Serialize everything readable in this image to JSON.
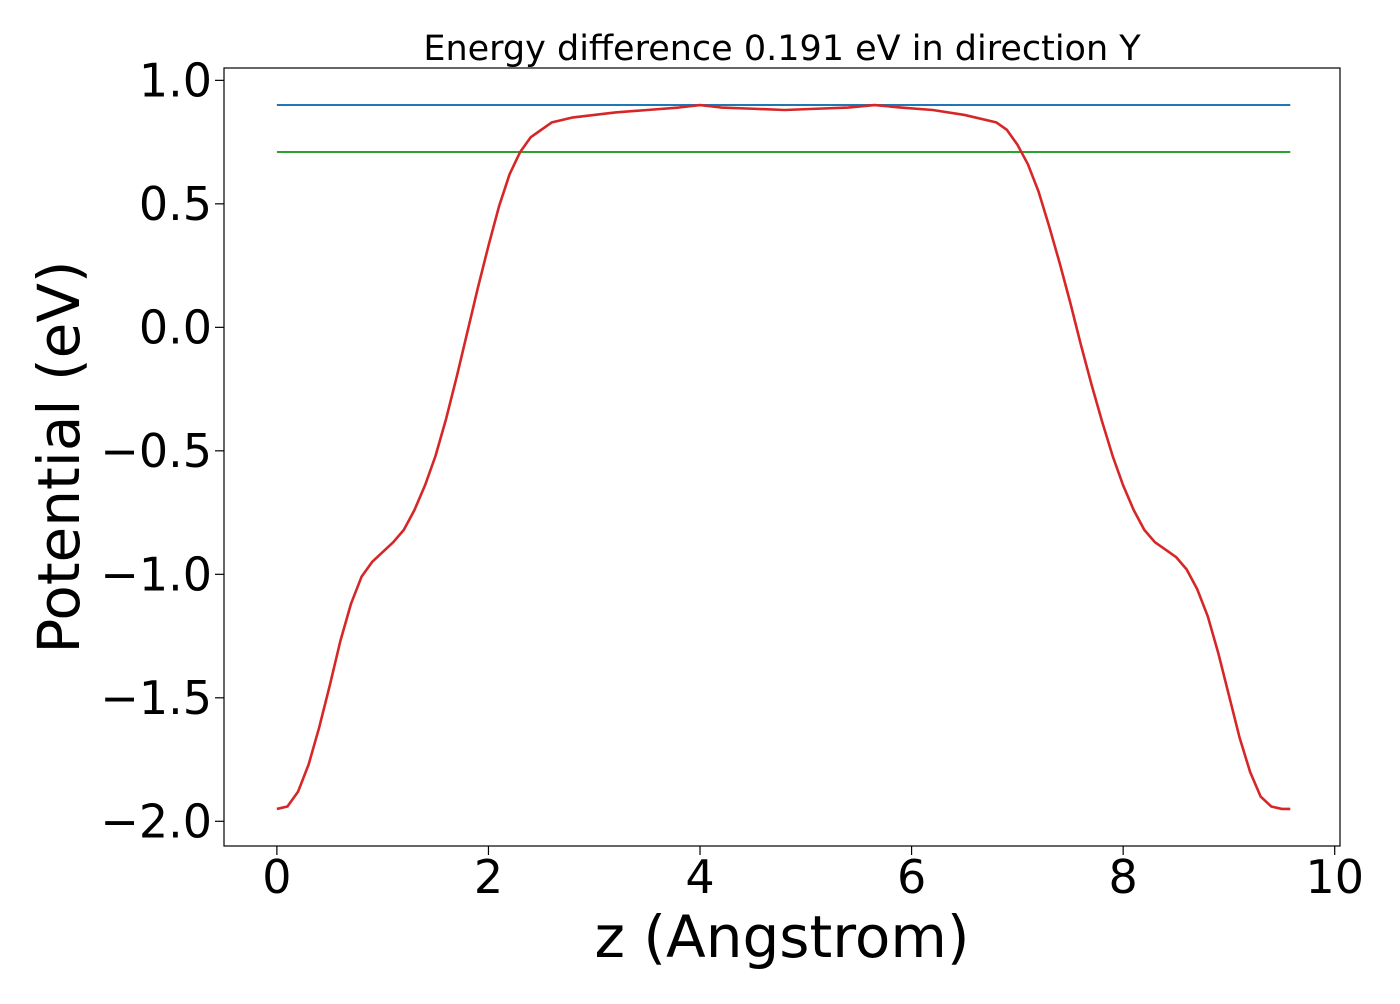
{
  "chart_data": {
    "type": "line",
    "title": "Energy difference 0.191 eV in direction Y",
    "xlabel": "z (Angstrom)",
    "ylabel": "Potential (eV)",
    "xlim": [
      -0.5,
      10.05
    ],
    "ylim": [
      -2.1,
      1.05
    ],
    "grid": false,
    "x_ticks": [
      0,
      2,
      4,
      6,
      8,
      10
    ],
    "y_ticks": [
      1.0,
      0.5,
      0.0,
      -0.5,
      -1.0,
      -1.5,
      -2.0
    ],
    "x_tick_labels": [
      "0",
      "2",
      "4",
      "6",
      "8",
      "10"
    ],
    "y_tick_labels": [
      "1.0",
      "0.5",
      "0.0",
      "−0.5",
      "−1.0",
      "−1.5",
      "−2.0"
    ],
    "series": [
      {
        "color": "#1f77b4",
        "x": [
          0,
          9.58
        ],
        "y": [
          0.9,
          0.9
        ]
      },
      {
        "color": "#2ca02c",
        "x": [
          0,
          9.58
        ],
        "y": [
          0.71,
          0.71
        ]
      },
      {
        "color": "#d62728",
        "x": [
          0,
          0.1,
          0.2,
          0.3,
          0.4,
          0.5,
          0.6,
          0.7,
          0.8,
          0.9,
          1.0,
          1.1,
          1.2,
          1.3,
          1.4,
          1.5,
          1.6,
          1.7,
          1.8,
          1.9,
          2.0,
          2.1,
          2.2,
          2.3,
          2.4,
          2.5,
          2.6,
          2.7,
          2.8,
          3.0,
          3.2,
          3.5,
          3.8,
          4.0,
          4.2,
          4.5,
          4.8,
          5.1,
          5.4,
          5.65,
          5.9,
          6.2,
          6.5,
          6.8,
          6.9,
          7.0,
          7.1,
          7.2,
          7.3,
          7.4,
          7.5,
          7.6,
          7.7,
          7.8,
          7.9,
          8.0,
          8.1,
          8.2,
          8.3,
          8.4,
          8.5,
          8.6,
          8.7,
          8.8,
          8.9,
          9.0,
          9.1,
          9.2,
          9.3,
          9.4,
          9.5,
          9.58
        ],
        "y": [
          -1.95,
          -1.94,
          -1.88,
          -1.77,
          -1.62,
          -1.45,
          -1.27,
          -1.12,
          -1.01,
          -0.95,
          -0.91,
          -0.87,
          -0.82,
          -0.74,
          -0.64,
          -0.52,
          -0.37,
          -0.2,
          -0.02,
          0.16,
          0.33,
          0.49,
          0.62,
          0.71,
          0.77,
          0.8,
          0.83,
          0.84,
          0.85,
          0.86,
          0.87,
          0.88,
          0.89,
          0.9,
          0.89,
          0.885,
          0.88,
          0.885,
          0.89,
          0.9,
          0.89,
          0.88,
          0.86,
          0.83,
          0.8,
          0.74,
          0.66,
          0.55,
          0.41,
          0.26,
          0.1,
          -0.07,
          -0.23,
          -0.38,
          -0.52,
          -0.64,
          -0.74,
          -0.82,
          -0.87,
          -0.9,
          -0.93,
          -0.98,
          -1.06,
          -1.17,
          -1.32,
          -1.49,
          -1.66,
          -1.8,
          -1.9,
          -1.94,
          -1.95,
          -1.95
        ]
      }
    ]
  }
}
